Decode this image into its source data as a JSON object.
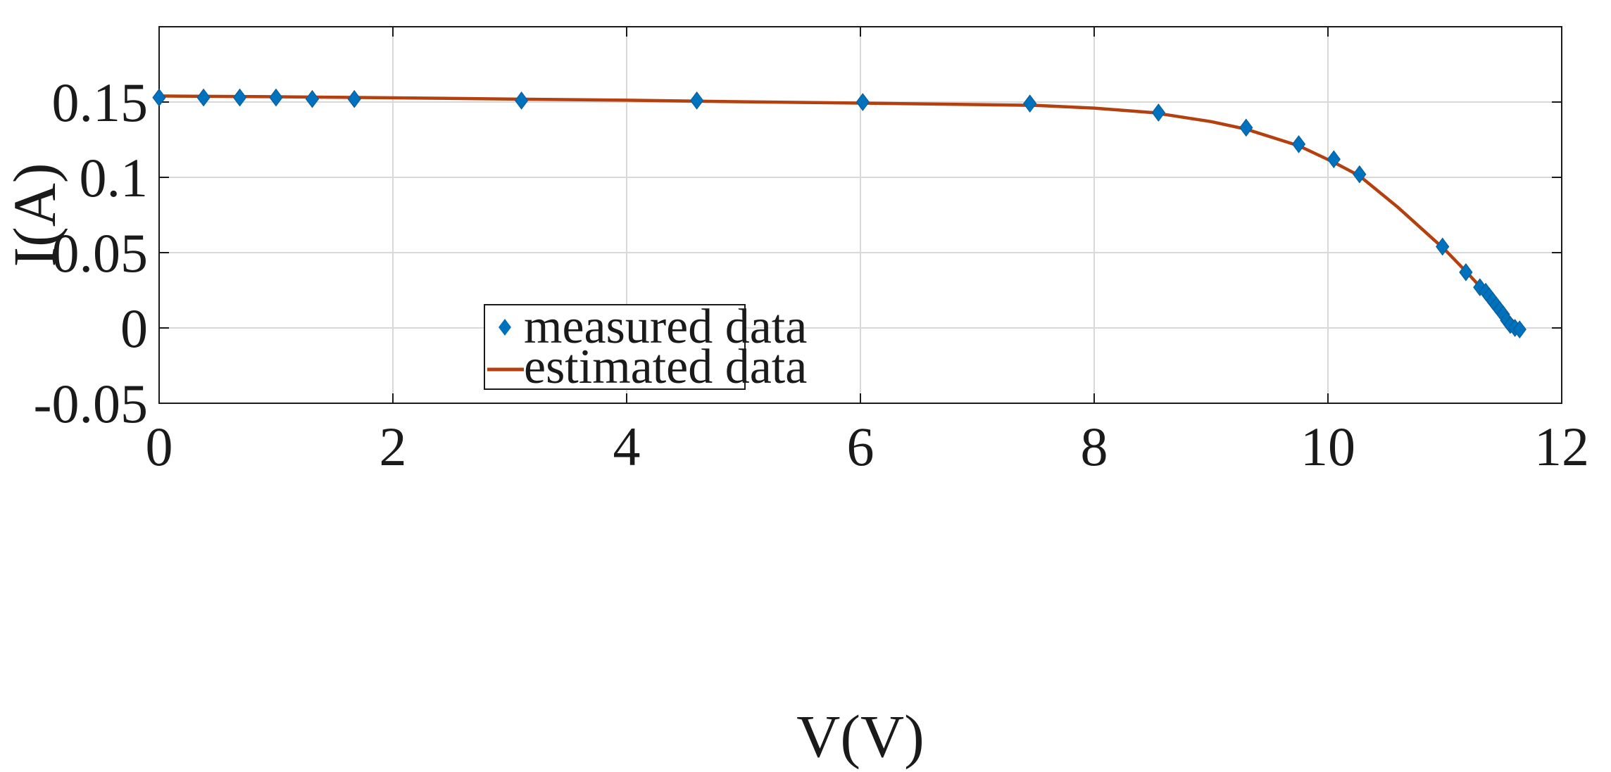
{
  "chart_data": {
    "type": "line",
    "title": "",
    "xlabel": "V(V)",
    "ylabel": "I(A)",
    "xlim": [
      0,
      12
    ],
    "ylim": [
      -0.05,
      0.2
    ],
    "x_ticks": [
      0,
      2,
      4,
      6,
      8,
      10,
      12
    ],
    "x_tick_labels": [
      "0",
      "2",
      "4",
      "6",
      "8",
      "10",
      "12"
    ],
    "y_ticks": [
      -0.05,
      0,
      0.05,
      0.1,
      0.15
    ],
    "y_tick_labels": [
      "-0.05",
      "0",
      "0.05",
      "0.1",
      "0.15"
    ],
    "grid": true,
    "legend_position": "bottom-center",
    "series": [
      {
        "name": "measured data",
        "style": "markers",
        "marker": "diamond",
        "color": "#0072BD",
        "x": [
          0.0,
          0.38,
          0.69,
          1.0,
          1.31,
          1.67,
          3.1,
          4.6,
          6.02,
          7.45,
          8.55,
          9.3,
          9.75,
          10.05,
          10.27,
          10.98,
          11.18,
          11.3,
          11.35,
          11.38,
          11.41,
          11.44,
          11.47,
          11.5,
          11.53,
          11.56,
          11.6,
          11.64
        ],
        "y": [
          0.153,
          0.153,
          0.153,
          0.153,
          0.152,
          0.152,
          0.151,
          0.151,
          0.15,
          0.149,
          0.143,
          0.133,
          0.122,
          0.112,
          0.102,
          0.054,
          0.037,
          0.027,
          0.024,
          0.021,
          0.018,
          0.015,
          0.012,
          0.009,
          0.005,
          0.002,
          0.0,
          -0.001
        ]
      },
      {
        "name": "estimated data",
        "style": "line",
        "color": "#B5400F",
        "x": [
          0.0,
          1.0,
          2.0,
          3.0,
          4.0,
          5.0,
          6.0,
          7.0,
          7.5,
          8.0,
          8.5,
          9.0,
          9.3,
          9.75,
          10.05,
          10.27,
          10.6,
          11.0,
          11.2,
          11.4,
          11.5,
          11.6,
          11.65
        ],
        "y": [
          0.154,
          0.1535,
          0.1528,
          0.152,
          0.1512,
          0.1502,
          0.1493,
          0.1483,
          0.1478,
          0.146,
          0.143,
          0.137,
          0.132,
          0.121,
          0.11,
          0.101,
          0.08,
          0.052,
          0.036,
          0.019,
          0.011,
          0.003,
          -0.001
        ]
      }
    ],
    "colors": {
      "axis": "#1a1a1a",
      "grid": "#d9d9d9",
      "measured": "#0072BD",
      "estimated": "#B5400F"
    }
  }
}
